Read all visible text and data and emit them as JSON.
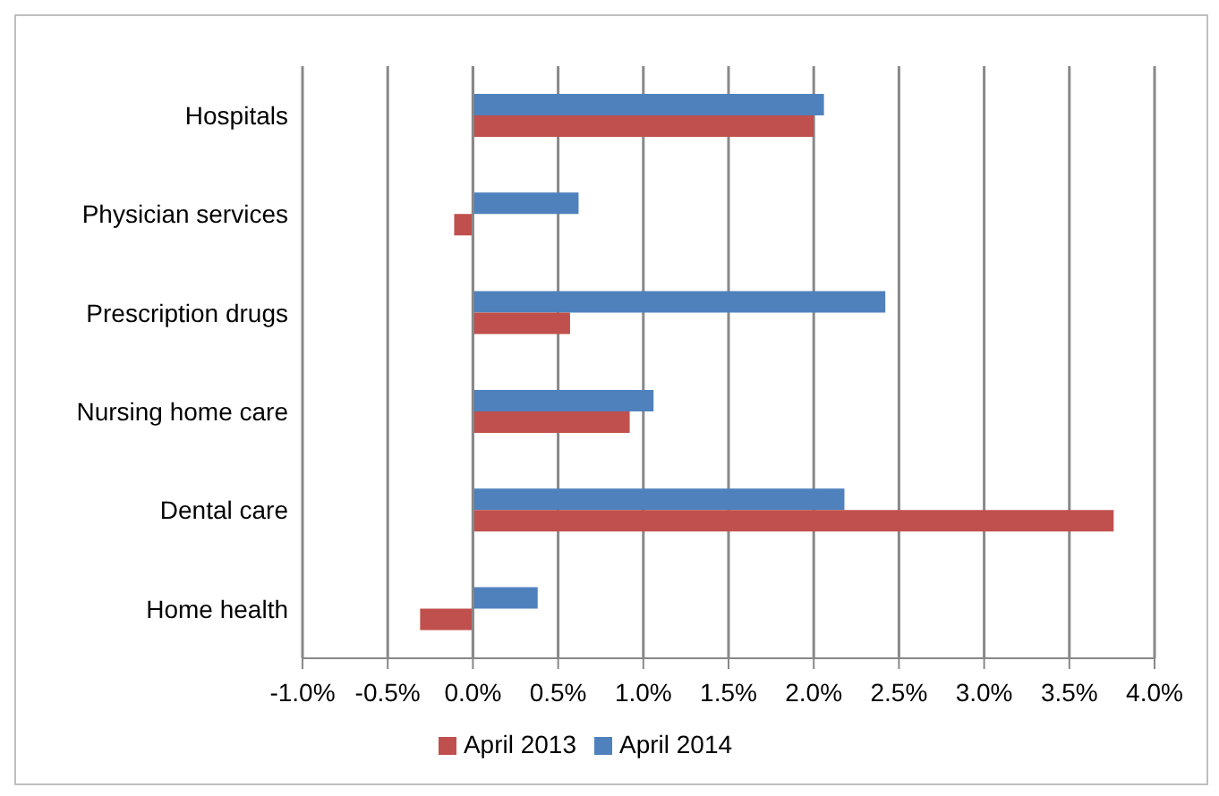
{
  "chart_data": {
    "type": "bar",
    "orientation": "horizontal",
    "categories": [
      "Hospitals",
      "Physician services",
      "Prescription drugs",
      "Nursing home care",
      "Dental care",
      "Home health"
    ],
    "series": [
      {
        "name": "April 2014",
        "color": "#4f81bd",
        "values": [
          2.06,
          0.62,
          2.42,
          1.06,
          2.18,
          0.38
        ]
      },
      {
        "name": "April 2013",
        "color": "#c0504d",
        "values": [
          2.0,
          -0.11,
          0.57,
          0.92,
          3.76,
          -0.31
        ]
      }
    ],
    "xlim": [
      -1.0,
      4.0
    ],
    "xticks": [
      {
        "value": -1.0,
        "label": "-1.0%"
      },
      {
        "value": -0.5,
        "label": "-0.5%"
      },
      {
        "value": 0,
        "label": "0.0%"
      },
      {
        "value": 0.5,
        "label": "0.5%"
      },
      {
        "value": 1.0,
        "label": "1.0%"
      },
      {
        "value": 1.5,
        "label": "1.5%"
      },
      {
        "value": 2.0,
        "label": "2.0%"
      },
      {
        "value": 2.5,
        "label": "2.5%"
      },
      {
        "value": 3.0,
        "label": "3.0%"
      },
      {
        "value": 3.5,
        "label": "3.5%"
      },
      {
        "value": 4.0,
        "label": "4.0%"
      }
    ],
    "grid": "x",
    "legend": "bottom"
  }
}
